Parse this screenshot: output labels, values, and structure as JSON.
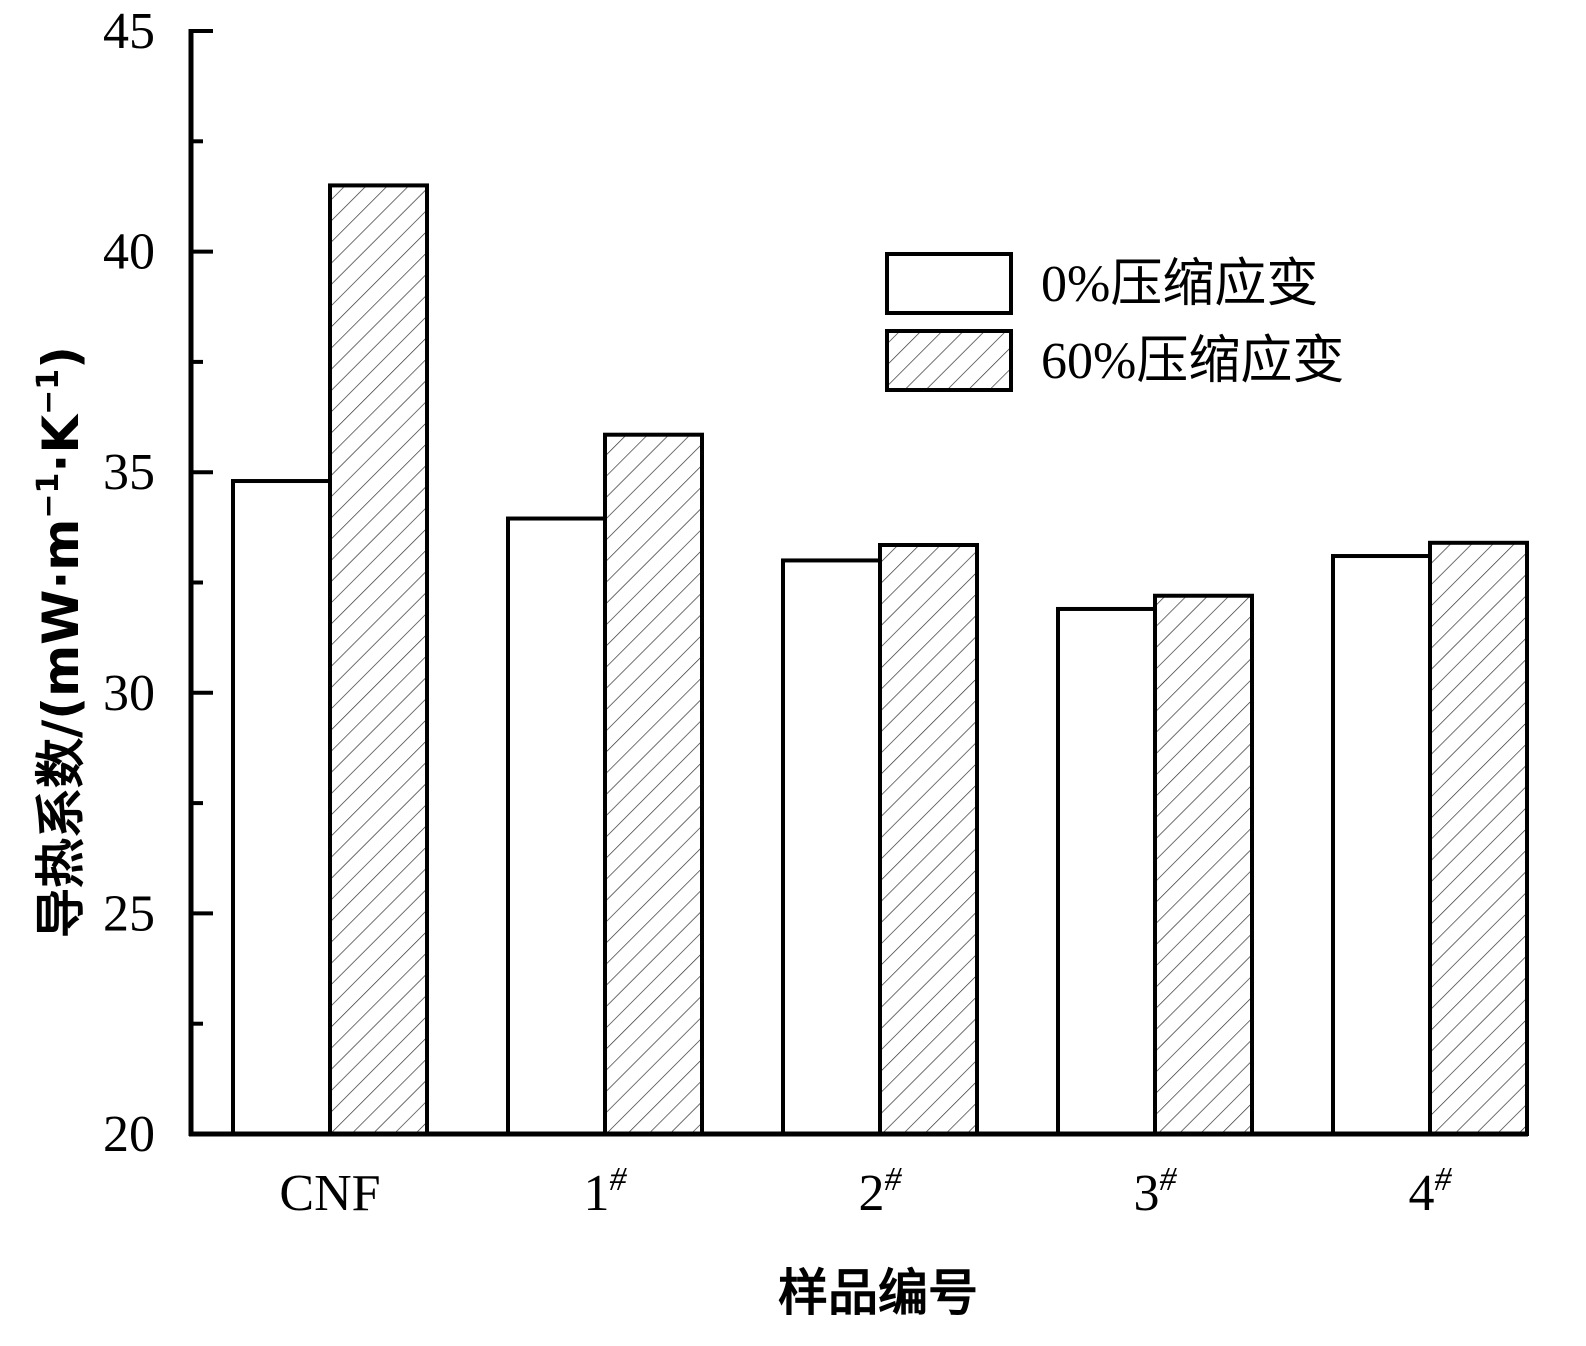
{
  "chart_data": {
    "type": "bar",
    "categories": [
      "CNF",
      "1#",
      "2#",
      "3#",
      "4#"
    ],
    "category_labels": [
      {
        "base": "CNF",
        "sup": ""
      },
      {
        "base": "1",
        "sup": "#"
      },
      {
        "base": "2",
        "sup": "#"
      },
      {
        "base": "3",
        "sup": "#"
      },
      {
        "base": "4",
        "sup": "#"
      }
    ],
    "series": [
      {
        "name": "0%压缩应变",
        "values": [
          34.8,
          33.95,
          33.0,
          31.9,
          33.1
        ],
        "fill": "#ffffff",
        "pattern": "none"
      },
      {
        "name": "60%压缩应变",
        "values": [
          41.5,
          35.85,
          33.35,
          32.2,
          33.4
        ],
        "fill": "#ffffff",
        "pattern": "diagonal-hatch"
      }
    ],
    "xlabel": "样品编号",
    "ylabel": "导热系数/(mW·m⁻¹·K⁻¹)",
    "ylabel_parts": [
      {
        "text": "导热系数/(mW·m",
        "sup": false
      },
      {
        "text": "−1",
        "sup": true
      },
      {
        "text": "·K",
        "sup": false
      },
      {
        "text": "−1",
        "sup": true
      },
      {
        "text": ")",
        "sup": false
      }
    ],
    "ylim": [
      20,
      45
    ],
    "yticks": [
      20,
      25,
      30,
      35,
      40,
      45
    ],
    "ytick_labels": [
      "20",
      "25",
      "30",
      "35",
      "40",
      "45"
    ],
    "grid": false,
    "legend_position": "top-right"
  }
}
